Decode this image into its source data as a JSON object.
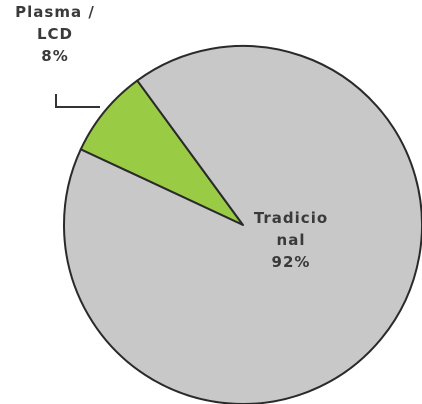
{
  "chart_data": {
    "type": "pie",
    "categories": [
      "Plasma / LCD",
      "Tradicional"
    ],
    "values": [
      8,
      92
    ],
    "value_labels": [
      "8%",
      "92%"
    ],
    "colors": [
      "#99cc44",
      "#c8c8c8"
    ]
  }
}
